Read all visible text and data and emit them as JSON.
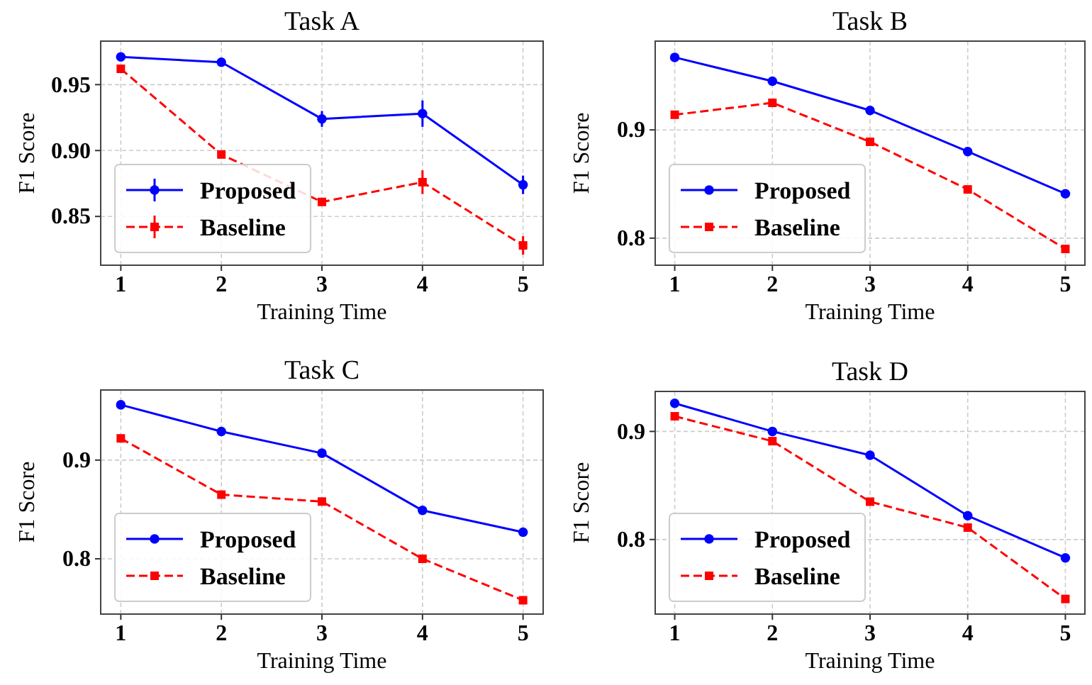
{
  "chart_data": [
    {
      "type": "line",
      "title": "Task A",
      "xlabel": "Training Time",
      "ylabel": "F1 Score",
      "x": [
        1,
        2,
        3,
        4,
        5
      ],
      "xlim": [
        0.8,
        5.2
      ],
      "xticks": [
        1,
        2,
        3,
        4,
        5
      ],
      "ylim": [
        0.813,
        0.983
      ],
      "yticks": [
        {
          "value": 0.85,
          "label": "0.85"
        },
        {
          "value": 0.9,
          "label": "0.90"
        },
        {
          "value": 0.95,
          "label": "0.95"
        }
      ],
      "grid": true,
      "legend": "bottom left",
      "series": [
        {
          "name": "Proposed",
          "color": "#0000ff",
          "marker": "circle",
          "line_style": "solid",
          "values": [
            0.971,
            0.967,
            0.924,
            0.928,
            0.874
          ],
          "errors": [
            null,
            null,
            0.006,
            0.01,
            0.007
          ]
        },
        {
          "name": "Baseline",
          "color": "#ff0000",
          "marker": "square",
          "line_style": "dashed",
          "values": [
            0.962,
            0.897,
            0.861,
            0.876,
            0.828
          ],
          "errors": [
            null,
            null,
            null,
            0.009,
            0.007
          ]
        }
      ]
    },
    {
      "type": "line",
      "title": "Task B",
      "xlabel": "Training Time",
      "ylabel": "F1 Score",
      "x": [
        1,
        2,
        3,
        4,
        5
      ],
      "xlim": [
        0.8,
        5.2
      ],
      "xticks": [
        1,
        2,
        3,
        4,
        5
      ],
      "ylim": [
        0.775,
        0.982
      ],
      "yticks": [
        {
          "value": 0.8,
          "label": "0.8"
        },
        {
          "value": 0.9,
          "label": "0.9"
        }
      ],
      "grid": true,
      "legend": "bottom left",
      "series": [
        {
          "name": "Proposed",
          "color": "#0000ff",
          "marker": "circle",
          "line_style": "solid",
          "values": [
            0.967,
            0.945,
            0.918,
            0.88,
            0.841
          ]
        },
        {
          "name": "Baseline",
          "color": "#ff0000",
          "marker": "square",
          "line_style": "dashed",
          "values": [
            0.914,
            0.925,
            0.889,
            0.845,
            0.79
          ]
        }
      ]
    },
    {
      "type": "line",
      "title": "Task C",
      "xlabel": "Training Time",
      "ylabel": "F1 Score",
      "x": [
        1,
        2,
        3,
        4,
        5
      ],
      "xlim": [
        0.8,
        5.2
      ],
      "xticks": [
        1,
        2,
        3,
        4,
        5
      ],
      "ylim": [
        0.744,
        0.971
      ],
      "yticks": [
        {
          "value": 0.8,
          "label": "0.8"
        },
        {
          "value": 0.9,
          "label": "0.9"
        }
      ],
      "grid": true,
      "legend": "bottom left",
      "series": [
        {
          "name": "Proposed",
          "color": "#0000ff",
          "marker": "circle",
          "line_style": "solid",
          "values": [
            0.956,
            0.929,
            0.907,
            0.849,
            0.827
          ]
        },
        {
          "name": "Baseline",
          "color": "#ff0000",
          "marker": "square",
          "line_style": "dashed",
          "values": [
            0.922,
            0.865,
            0.858,
            0.8,
            0.758
          ]
        }
      ]
    },
    {
      "type": "line",
      "title": "Task D",
      "xlabel": "Training Time",
      "ylabel": "F1 Score",
      "x": [
        1,
        2,
        3,
        4,
        5
      ],
      "xlim": [
        0.8,
        5.2
      ],
      "xticks": [
        1,
        2,
        3,
        4,
        5
      ],
      "ylim": [
        0.731,
        0.937
      ],
      "yticks": [
        {
          "value": 0.8,
          "label": "0.8"
        },
        {
          "value": 0.9,
          "label": "0.9"
        }
      ],
      "grid": true,
      "legend": "bottom left",
      "series": [
        {
          "name": "Proposed",
          "color": "#0000ff",
          "marker": "circle",
          "line_style": "solid",
          "values": [
            0.926,
            0.9,
            0.878,
            0.822,
            0.783
          ]
        },
        {
          "name": "Baseline",
          "color": "#ff0000",
          "marker": "square",
          "line_style": "dashed",
          "values": [
            0.914,
            0.891,
            0.835,
            0.811,
            0.745
          ]
        }
      ]
    }
  ]
}
